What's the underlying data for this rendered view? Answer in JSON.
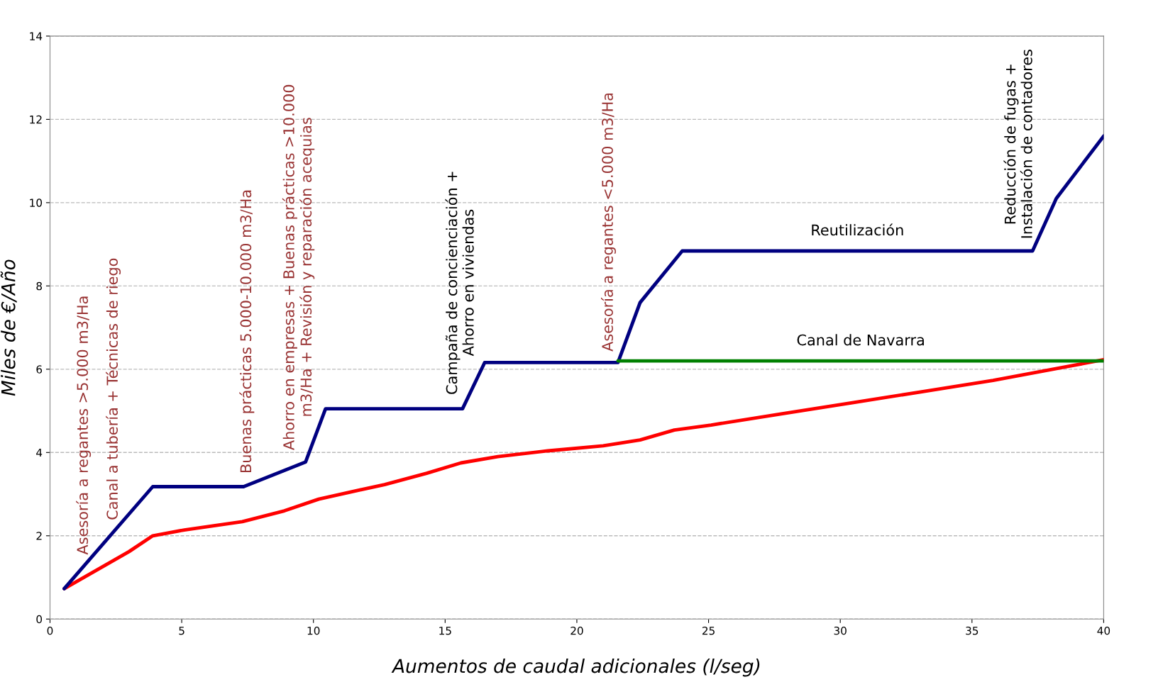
{
  "chart_data": {
    "type": "line",
    "xlabel": "Aumentos de caudal adicionales (l/seg)",
    "ylabel": "Miles de €/Año",
    "xlim": [
      0,
      40
    ],
    "ylim": [
      0,
      14
    ],
    "xticks": [
      0,
      5,
      10,
      15,
      20,
      25,
      30,
      35,
      40
    ],
    "yticks": [
      0,
      2,
      4,
      6,
      8,
      10,
      12,
      14
    ],
    "grid": "y",
    "legend": false,
    "marker": "none",
    "line_style": "solid",
    "series": [
      {
        "color": "#ff0000",
        "x": [
          0.54,
          3.0,
          3.9,
          5.1,
          7.3,
          8.9,
          10.2,
          12.7,
          14.3,
          15.6,
          17.0,
          18.9,
          21.0,
          22.4,
          23.7,
          25.1,
          27.8,
          30.5,
          33.1,
          35.8,
          38.5,
          40.0
        ],
        "values": [
          0.73,
          1.62,
          2.0,
          2.14,
          2.34,
          2.6,
          2.88,
          3.23,
          3.5,
          3.75,
          3.9,
          4.04,
          4.16,
          4.3,
          4.54,
          4.66,
          4.93,
          5.2,
          5.46,
          5.73,
          6.05,
          6.23
        ]
      },
      {
        "name": "Reutilización",
        "color": "#000080",
        "x": [
          0.54,
          3.9,
          7.35,
          9.7,
          10.46,
          15.66,
          16.5,
          21.56,
          22.4,
          24.0,
          37.3,
          38.2,
          40.0
        ],
        "values": [
          0.73,
          3.18,
          3.18,
          3.77,
          5.05,
          5.05,
          6.16,
          6.16,
          7.6,
          8.84,
          8.84,
          10.1,
          11.6
        ]
      },
      {
        "name": "Canal de Navarra",
        "color": "#008000",
        "x": [
          21.56,
          40.0
        ],
        "values": [
          6.2,
          6.2
        ]
      }
    ],
    "annotations": [
      {
        "text": "Asesoría a regantes >5.000 m3/Ha",
        "x": 1.27,
        "y": 1.26
      },
      {
        "text": "Canal a tubería + Técnicas de riego",
        "x": 2.4,
        "y": 2.09
      },
      {
        "text": "Buenas prácticas 5.000-10.000 m3/Ha",
        "x": 7.47,
        "y": 3.21
      },
      {
        "text": "Ahorro en empresas + Buenas prácticas >10.000\nm3/Ha + Revisión y reparación acequias",
        "x": 9.43,
        "y": 3.77
      },
      {
        "text": "Campaña de concienciación +\nAhorro en viviendas",
        "x": 15.6,
        "y": 5.1
      },
      {
        "text": "Asesoría a regantes <5.000 m3/Ha",
        "x": 21.2,
        "y": 6.14
      },
      {
        "text": "Reducción de fugas +\nInstalación de contadores",
        "x": 36.8,
        "y": 8.84
      }
    ]
  }
}
